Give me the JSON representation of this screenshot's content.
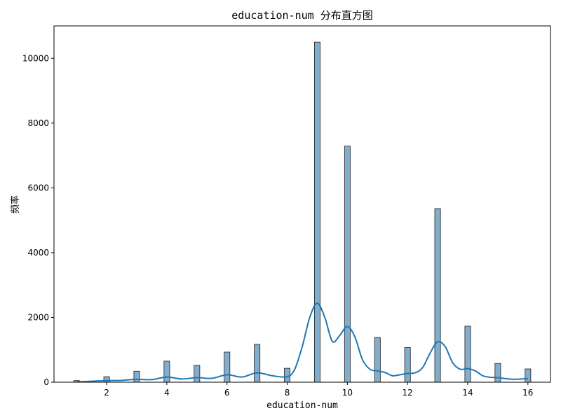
{
  "chart_data": {
    "type": "bar",
    "title": "education-num 分布直方图",
    "xlabel": "education-num",
    "ylabel": "频率",
    "xlim": [
      0.25,
      16.75
    ],
    "ylim": [
      0,
      11000
    ],
    "x_ticks": [
      2,
      4,
      6,
      8,
      10,
      12,
      14,
      16
    ],
    "y_ticks": [
      0,
      2000,
      4000,
      6000,
      8000,
      10000
    ],
    "bar_width": 0.19,
    "grid": false,
    "colors": {
      "bar_fill": "#82aecd",
      "bar_edge": "#1f1f1f",
      "kde_line": "#1f77b4"
    },
    "series": [
      {
        "name": "",
        "type": "histogram",
        "x": [
          1,
          2,
          3,
          4,
          5,
          6,
          7,
          8,
          9,
          10,
          11,
          12,
          13,
          14,
          15,
          16
        ],
        "values": [
          50,
          170,
          340,
          650,
          520,
          930,
          1170,
          430,
          10500,
          7290,
          1380,
          1070,
          5360,
          1730,
          580,
          410
        ]
      },
      {
        "name": "",
        "type": "kde",
        "x": [
          1,
          1.5,
          2,
          2.5,
          3,
          3.5,
          4,
          4.5,
          5,
          5.5,
          6,
          6.5,
          7,
          7.5,
          8,
          8.25,
          8.5,
          8.75,
          9,
          9.25,
          9.5,
          9.75,
          10,
          10.25,
          10.5,
          10.75,
          11,
          11.25,
          11.5,
          11.75,
          12,
          12.25,
          12.5,
          12.75,
          13,
          13.25,
          13.5,
          13.75,
          14,
          14.25,
          14.5,
          14.75,
          15,
          15.5,
          16
        ],
        "values": [
          10,
          30,
          50,
          55,
          90,
          80,
          160,
          100,
          140,
          120,
          230,
          160,
          290,
          200,
          170,
          400,
          1100,
          2000,
          2440,
          2000,
          1260,
          1450,
          1720,
          1400,
          700,
          400,
          350,
          300,
          200,
          230,
          270,
          290,
          450,
          900,
          1250,
          1100,
          600,
          400,
          420,
          350,
          200,
          150,
          140,
          90,
          110
        ]
      }
    ]
  }
}
